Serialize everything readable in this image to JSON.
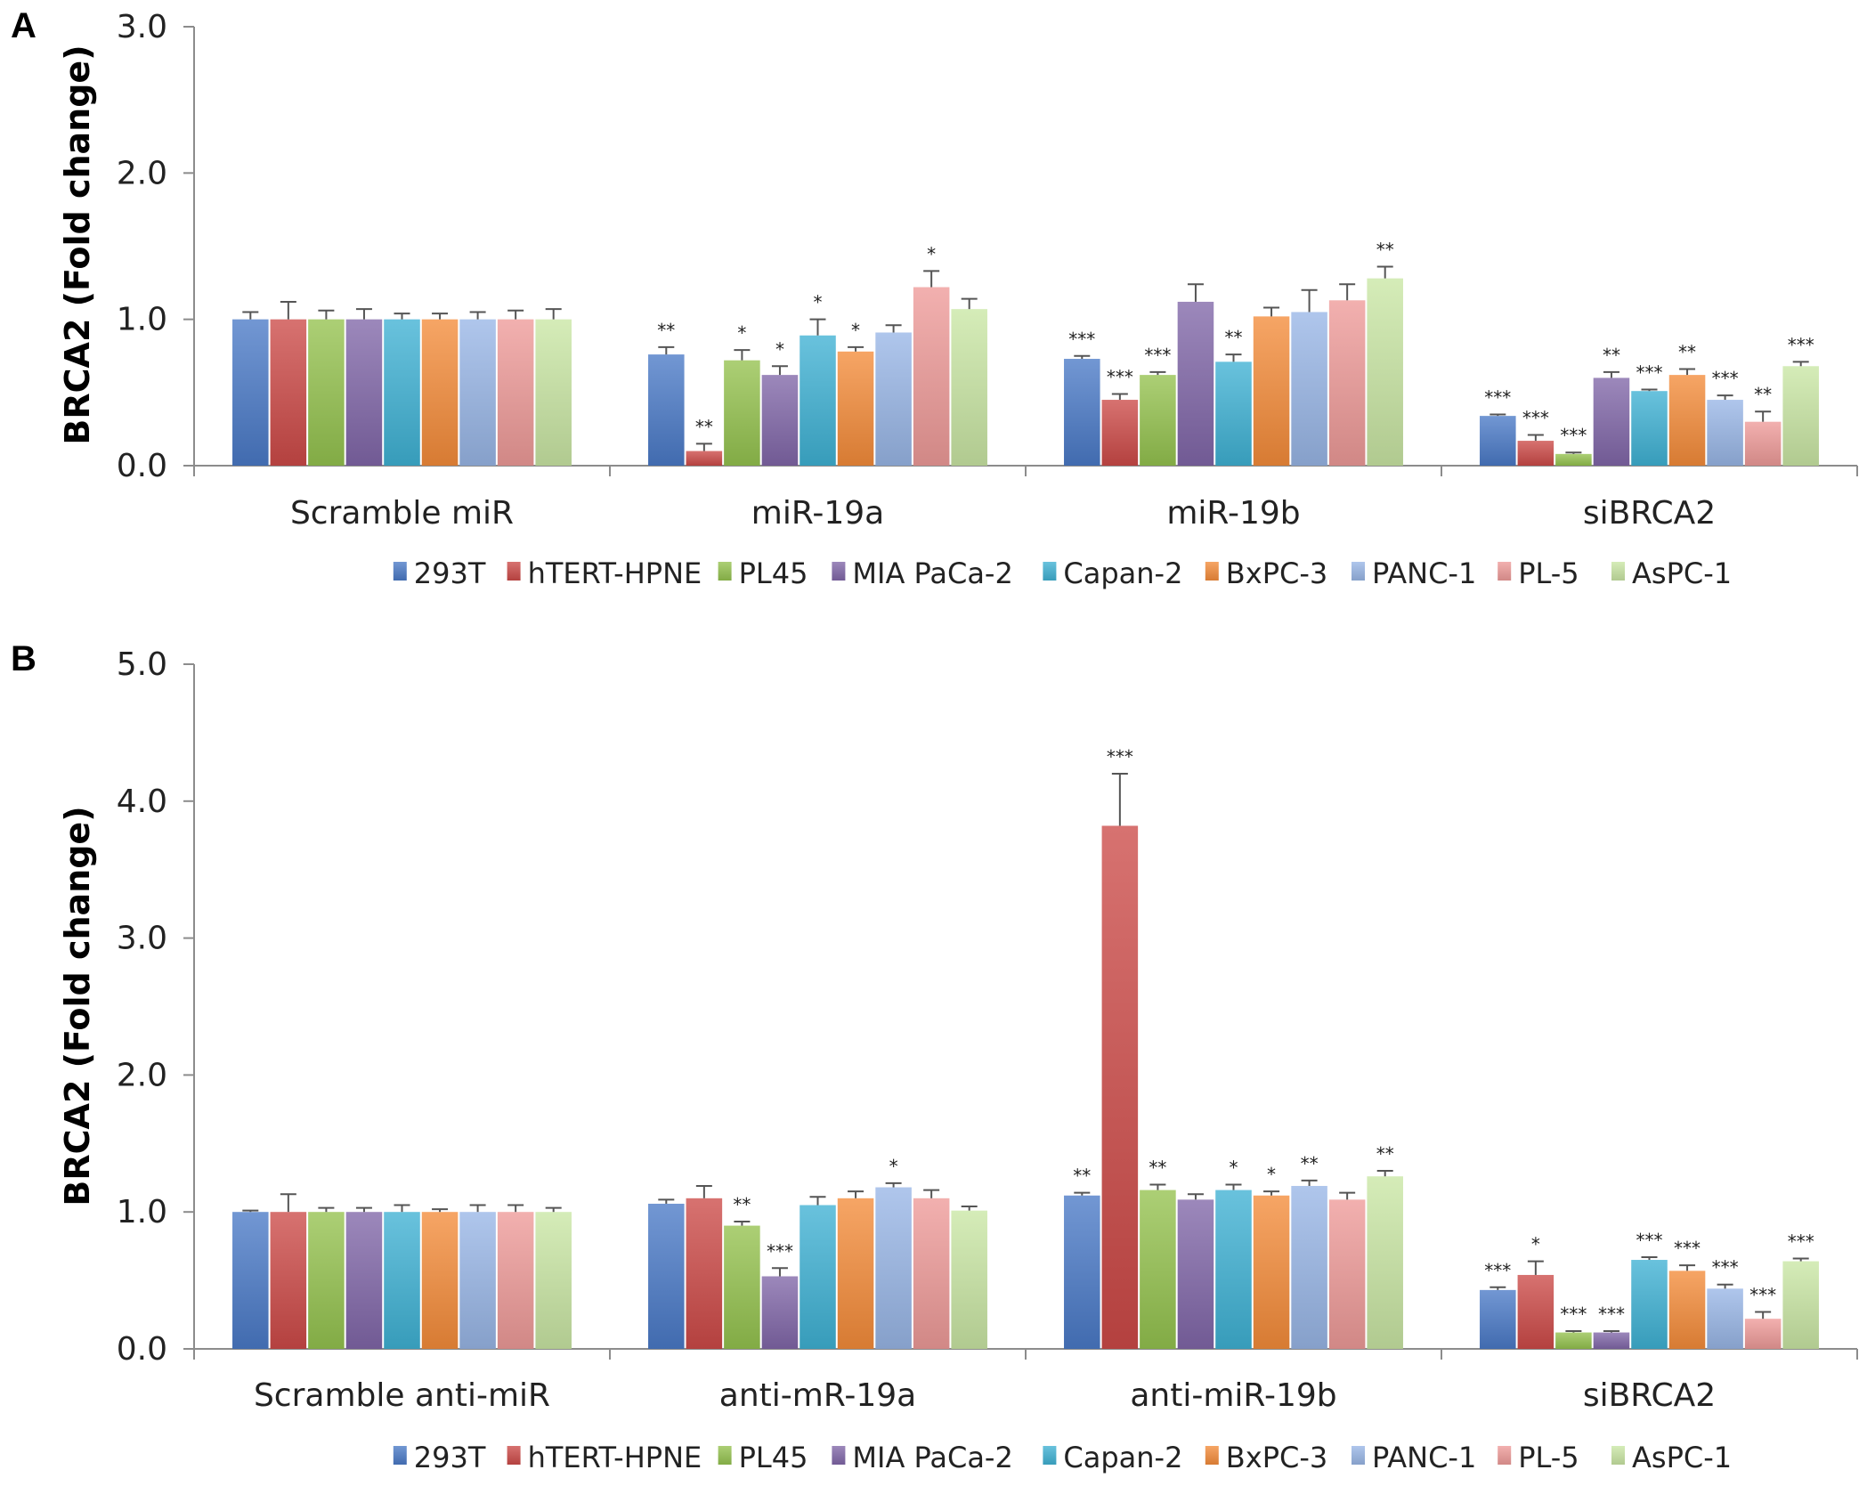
{
  "chart_data": [
    {
      "panel": "A",
      "type": "bar",
      "ylabel": "BRCA2 (Fold change)",
      "xlabel": "",
      "ylim": [
        0,
        3.0
      ],
      "yticks": [
        "0.0",
        "1.0",
        "2.0",
        "3.0"
      ],
      "ytick_values": [
        0,
        1,
        2,
        3
      ],
      "categories": [
        "Scramble miR",
        "miR-19a",
        "miR-19b",
        "siBRCA2"
      ],
      "legend_position": "bottom",
      "series": [
        {
          "name": "293T",
          "color": "#4a7ac7",
          "values": [
            1.0,
            0.76,
            0.73,
            0.34
          ],
          "errors": [
            0.05,
            0.05,
            0.02,
            0.01
          ],
          "sig": [
            "",
            "**",
            "***",
            "***"
          ]
        },
        {
          "name": "hTERT-HPNE",
          "color": "#cc4a48",
          "values": [
            1.0,
            0.1,
            0.45,
            0.17
          ],
          "errors": [
            0.12,
            0.05,
            0.04,
            0.04
          ],
          "sig": [
            "",
            "**",
            "***",
            "***"
          ]
        },
        {
          "name": "PL45",
          "color": "#94c24e",
          "values": [
            1.0,
            0.72,
            0.62,
            0.08
          ],
          "errors": [
            0.06,
            0.07,
            0.02,
            0.01
          ],
          "sig": [
            "",
            "*",
            "***",
            "***"
          ]
        },
        {
          "name": "MIA PaCa-2",
          "color": "#8066a8",
          "values": [
            1.0,
            0.62,
            1.12,
            0.6
          ],
          "errors": [
            0.07,
            0.06,
            0.12,
            0.04
          ],
          "sig": [
            "",
            "*",
            "",
            "**"
          ]
        },
        {
          "name": "Capan-2",
          "color": "#3fb1d3",
          "values": [
            1.0,
            0.89,
            0.71,
            0.51
          ],
          "errors": [
            0.04,
            0.11,
            0.05,
            0.01
          ],
          "sig": [
            "",
            "*",
            "**",
            "***"
          ]
        },
        {
          "name": "BxPC-3",
          "color": "#f48c3a",
          "values": [
            1.0,
            0.78,
            1.02,
            0.62
          ],
          "errors": [
            0.04,
            0.03,
            0.06,
            0.04
          ],
          "sig": [
            "",
            "*",
            "",
            "**"
          ]
        },
        {
          "name": "PANC-1",
          "color": "#98b6e6",
          "values": [
            1.0,
            0.91,
            1.05,
            0.45
          ],
          "errors": [
            0.05,
            0.05,
            0.15,
            0.03
          ],
          "sig": [
            "",
            "",
            "",
            "***"
          ]
        },
        {
          "name": "PL-5",
          "color": "#ee9a98",
          "values": [
            1.0,
            1.22,
            1.13,
            0.3
          ],
          "errors": [
            0.06,
            0.11,
            0.11,
            0.07
          ],
          "sig": [
            "",
            "*",
            "",
            "**"
          ]
        },
        {
          "name": "AsPC-1",
          "color": "#c9e6a4",
          "values": [
            1.0,
            1.07,
            1.28,
            0.68
          ],
          "errors": [
            0.07,
            0.07,
            0.08,
            0.03
          ],
          "sig": [
            "",
            "",
            "**",
            "***"
          ]
        }
      ]
    },
    {
      "panel": "B",
      "type": "bar",
      "ylabel": "BRCA2 (Fold change)",
      "xlabel": "",
      "ylim": [
        0,
        5.0
      ],
      "yticks": [
        "0.0",
        "1.0",
        "2.0",
        "3.0",
        "4.0",
        "5.0"
      ],
      "ytick_values": [
        0,
        1,
        2,
        3,
        4,
        5
      ],
      "categories": [
        "Scramble anti-miR",
        "anti-mR-19a",
        "anti-miR-19b",
        "siBRCA2"
      ],
      "legend_position": "bottom",
      "series": [
        {
          "name": "293T",
          "color": "#4a7ac7",
          "values": [
            1.0,
            1.06,
            1.12,
            0.43
          ],
          "errors": [
            0.01,
            0.03,
            0.02,
            0.02
          ],
          "sig": [
            "",
            "",
            "**",
            "***"
          ]
        },
        {
          "name": "hTERT-HPNE",
          "color": "#cc4a48",
          "values": [
            1.0,
            1.1,
            3.82,
            0.54
          ],
          "errors": [
            0.13,
            0.09,
            0.38,
            0.1
          ],
          "sig": [
            "",
            "",
            "***",
            "*"
          ]
        },
        {
          "name": "PL45",
          "color": "#94c24e",
          "values": [
            1.0,
            0.9,
            1.16,
            0.12
          ],
          "errors": [
            0.03,
            0.03,
            0.04,
            0.01
          ],
          "sig": [
            "",
            "**",
            "**",
            "***"
          ]
        },
        {
          "name": "MIA PaCa-2",
          "color": "#8066a8",
          "values": [
            1.0,
            0.53,
            1.09,
            0.12
          ],
          "errors": [
            0.03,
            0.06,
            0.04,
            0.01
          ],
          "sig": [
            "",
            "***",
            "",
            "***"
          ]
        },
        {
          "name": "Capan-2",
          "color": "#3fb1d3",
          "values": [
            1.0,
            1.05,
            1.16,
            0.65
          ],
          "errors": [
            0.05,
            0.06,
            0.04,
            0.02
          ],
          "sig": [
            "",
            "",
            "*",
            "***"
          ]
        },
        {
          "name": "BxPC-3",
          "color": "#f48c3a",
          "values": [
            1.0,
            1.1,
            1.12,
            0.57
          ],
          "errors": [
            0.02,
            0.05,
            0.03,
            0.04
          ],
          "sig": [
            "",
            "",
            "*",
            "***"
          ]
        },
        {
          "name": "PANC-1",
          "color": "#98b6e6",
          "values": [
            1.0,
            1.18,
            1.19,
            0.44
          ],
          "errors": [
            0.05,
            0.03,
            0.04,
            0.03
          ],
          "sig": [
            "",
            "*",
            "**",
            "***"
          ]
        },
        {
          "name": "PL-5",
          "color": "#ee9a98",
          "values": [
            1.0,
            1.1,
            1.09,
            0.22
          ],
          "errors": [
            0.05,
            0.06,
            0.05,
            0.05
          ],
          "sig": [
            "",
            "",
            "",
            "***"
          ]
        },
        {
          "name": "AsPC-1",
          "color": "#c9e6a4",
          "values": [
            1.0,
            1.01,
            1.26,
            0.64
          ],
          "errors": [
            0.03,
            0.03,
            0.04,
            0.02
          ],
          "sig": [
            "",
            "",
            "**",
            "***"
          ]
        }
      ]
    }
  ]
}
